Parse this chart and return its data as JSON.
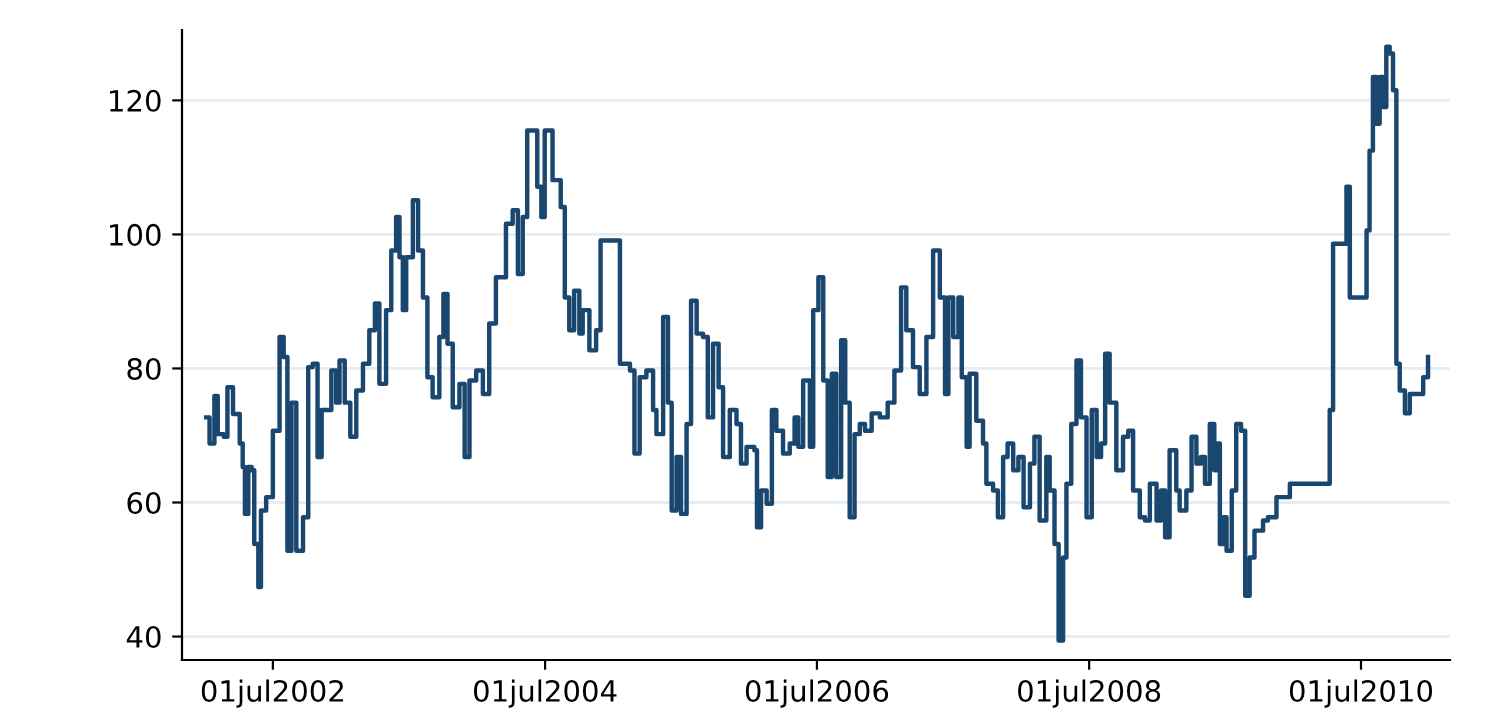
{
  "chart_data": {
    "type": "step",
    "color": "#1a476f",
    "grid": "y",
    "line_style": "solid",
    "xlim": [
      "2001-10-30",
      "2011-02-25"
    ],
    "ylim": [
      36.5,
      130.5
    ],
    "xticks": [
      {
        "value": "2002-07-01",
        "label": "01jul2002"
      },
      {
        "value": "2004-07-01",
        "label": "01jul2004"
      },
      {
        "value": "2006-07-01",
        "label": "01jul2006"
      },
      {
        "value": "2008-07-01",
        "label": "01jul2008"
      },
      {
        "value": "2010-07-01",
        "label": "01jul2010"
      }
    ],
    "yticks": [
      40,
      60,
      80,
      100,
      120
    ],
    "x": [
      "2002-01-03",
      "2002-01-12",
      "2002-01-25",
      "2002-02-03",
      "2002-02-19",
      "2002-03-01",
      "2002-03-16",
      "2002-04-03",
      "2002-04-11",
      "2002-04-17",
      "2002-04-26",
      "2002-05-05",
      "2002-05-12",
      "2002-05-23",
      "2002-05-30",
      "2002-06-13",
      "2002-07-01",
      "2002-07-19",
      "2002-07-30",
      "2002-08-09",
      "2002-08-20",
      "2002-09-02",
      "2002-09-20",
      "2002-10-04",
      "2002-10-16",
      "2002-10-29",
      "2002-11-09",
      "2002-11-21",
      "2002-12-05",
      "2002-12-18",
      "2002-12-27",
      "2003-01-10",
      "2003-01-25",
      "2003-02-10",
      "2003-02-28",
      "2003-03-17",
      "2003-04-01",
      "2003-04-13",
      "2003-05-01",
      "2003-05-15",
      "2003-05-28",
      "2003-06-06",
      "2003-06-15",
      "2003-06-24",
      "2003-07-12",
      "2003-07-26",
      "2003-08-08",
      "2003-08-20",
      "2003-09-03",
      "2003-09-21",
      "2003-10-02",
      "2003-10-13",
      "2003-10-27",
      "2003-11-14",
      "2003-11-28",
      "2003-12-11",
      "2003-12-29",
      "2004-01-16",
      "2004-02-02",
      "2004-02-20",
      "2004-03-18",
      "2004-04-05",
      "2004-04-19",
      "2004-05-02",
      "2004-05-14",
      "2004-05-29",
      "2004-06-10",
      "2004-06-21",
      "2004-06-30",
      "2004-07-21",
      "2004-08-12",
      "2004-08-23",
      "2004-09-04",
      "2004-09-17",
      "2004-10-01",
      "2004-10-10",
      "2004-10-28",
      "2004-11-15",
      "2004-11-27",
      "2005-01-18",
      "2005-02-14",
      "2005-02-26",
      "2005-03-12",
      "2005-03-30",
      "2005-04-17",
      "2005-04-26",
      "2005-05-14",
      "2005-05-27",
      "2005-06-06",
      "2005-06-19",
      "2005-07-01",
      "2005-07-16",
      "2005-07-28",
      "2005-08-12",
      "2005-08-29",
      "2005-09-11",
      "2005-09-25",
      "2005-10-10",
      "2005-10-22",
      "2005-11-09",
      "2005-11-27",
      "2005-12-09",
      "2005-12-24",
      "2006-01-14",
      "2006-01-21",
      "2006-02-01",
      "2006-02-16",
      "2006-03-02",
      "2006-03-14",
      "2006-04-01",
      "2006-04-19",
      "2006-05-02",
      "2006-05-12",
      "2006-05-25",
      "2006-06-12",
      "2006-06-21",
      "2006-07-05",
      "2006-07-18",
      "2006-07-30",
      "2006-08-10",
      "2006-08-22",
      "2006-09-04",
      "2006-09-15",
      "2006-09-27",
      "2006-10-10",
      "2006-10-24",
      "2006-11-07",
      "2006-11-25",
      "2006-12-17",
      "2007-01-07",
      "2007-01-25",
      "2007-02-12",
      "2007-02-26",
      "2007-03-16",
      "2007-04-03",
      "2007-04-21",
      "2007-05-09",
      "2007-05-27",
      "2007-06-10",
      "2007-06-19",
      "2007-07-02",
      "2007-07-16",
      "2007-07-25",
      "2007-08-07",
      "2007-08-15",
      "2007-09-02",
      "2007-09-20",
      "2007-09-29",
      "2007-10-17",
      "2007-10-30",
      "2007-11-13",
      "2007-11-25",
      "2007-12-10",
      "2007-12-24",
      "2008-01-07",
      "2008-01-24",
      "2008-02-05",
      "2008-02-19",
      "2008-03-08",
      "2008-03-17",
      "2008-03-30",
      "2008-04-10",
      "2008-04-22",
      "2008-05-01",
      "2008-05-14",
      "2008-05-28",
      "2008-06-09",
      "2008-06-24",
      "2008-07-08",
      "2008-07-21",
      "2008-08-02",
      "2008-08-13",
      "2008-08-25",
      "2008-09-12",
      "2008-09-30",
      "2008-10-14",
      "2008-10-27",
      "2008-11-14",
      "2008-11-28",
      "2008-12-11",
      "2008-12-29",
      "2009-01-10",
      "2009-01-21",
      "2009-02-02",
      "2009-02-20",
      "2009-03-01",
      "2009-03-19",
      "2009-04-02",
      "2009-04-15",
      "2009-04-27",
      "2009-05-08",
      "2009-05-21",
      "2009-06-02",
      "2009-06-10",
      "2009-06-17",
      "2009-06-26",
      "2009-07-05",
      "2009-07-19",
      "2009-07-31",
      "2009-08-13",
      "2009-08-24",
      "2009-09-05",
      "2009-09-18",
      "2009-10-11",
      "2009-10-24",
      "2009-11-16",
      "2009-12-04",
      "2009-12-22",
      "2010-01-09",
      "2010-04-08",
      "2010-04-17",
      "2010-05-14",
      "2010-05-23",
      "2010-06-01",
      "2010-07-07",
      "2010-07-16",
      "2010-07-24",
      "2010-08-02",
      "2010-08-11",
      "2010-08-20",
      "2010-08-29",
      "2010-09-07",
      "2010-09-16",
      "2010-09-25",
      "2010-10-04",
      "2010-10-13",
      "2010-10-27",
      "2010-11-09",
      "2010-11-27",
      "2010-12-15",
      "2010-12-28"
    ],
    "values": [
      72.7,
      68.8,
      75.9,
      70.2,
      69.8,
      77.2,
      73.2,
      68.8,
      65.3,
      58.3,
      65.3,
      64.8,
      53.8,
      47.4,
      58.8,
      60.8,
      70.7,
      84.7,
      81.7,
      52.8,
      74.9,
      52.8,
      57.8,
      80.2,
      80.7,
      66.8,
      73.8,
      73.8,
      79.7,
      74.9,
      81.2,
      74.9,
      69.8,
      76.7,
      80.7,
      85.7,
      89.7,
      77.7,
      88.7,
      97.6,
      102.6,
      96.6,
      88.7,
      96.6,
      105.1,
      97.6,
      90.6,
      78.7,
      75.7,
      84.7,
      91.1,
      83.7,
      74.2,
      77.7,
      66.8,
      78.2,
      79.7,
      76.2,
      86.7,
      93.6,
      101.6,
      103.6,
      94.1,
      102.6,
      115.5,
      115.5,
      107.1,
      102.6,
      115.5,
      108.1,
      104.1,
      90.6,
      85.7,
      91.6,
      85.2,
      88.7,
      82.7,
      85.7,
      99.1,
      80.7,
      79.7,
      67.3,
      78.7,
      79.7,
      73.8,
      70.2,
      87.7,
      74.9,
      58.8,
      66.8,
      58.3,
      71.7,
      90.1,
      85.2,
      84.7,
      72.7,
      83.7,
      77.2,
      66.8,
      73.8,
      71.7,
      65.8,
      68.3,
      67.8,
      56.3,
      61.8,
      59.8,
      73.8,
      70.7,
      67.3,
      68.8,
      72.7,
      68.3,
      78.2,
      68.3,
      88.7,
      93.6,
      78.2,
      63.8,
      79.2,
      63.8,
      84.2,
      74.9,
      57.8,
      70.2,
      71.7,
      70.7,
      73.3,
      72.7,
      74.9,
      79.7,
      92.1,
      85.7,
      80.2,
      76.2,
      84.7,
      97.6,
      90.6,
      76.2,
      90.6,
      84.7,
      90.6,
      78.7,
      68.3,
      79.2,
      72.2,
      68.8,
      62.8,
      61.8,
      57.8,
      66.8,
      68.8,
      64.8,
      66.8,
      59.3,
      65.8,
      69.8,
      57.3,
      66.8,
      61.8,
      53.8,
      39.4,
      51.8,
      62.8,
      71.7,
      81.2,
      72.7,
      57.8,
      73.8,
      66.8,
      68.8,
      82.2,
      74.9,
      64.8,
      69.8,
      70.7,
      61.8,
      57.8,
      57.3,
      62.8,
      57.3,
      61.8,
      54.8,
      67.8,
      61.8,
      58.8,
      61.8,
      69.8,
      65.8,
      66.8,
      62.8,
      71.7,
      64.8,
      68.8,
      53.8,
      57.8,
      52.8,
      61.8,
      71.7,
      70.7,
      46.1,
      51.8,
      55.8,
      57.3,
      57.8,
      60.8,
      60.8,
      62.8,
      62.8,
      73.8,
      98.6,
      98.6,
      107.1,
      90.6,
      90.6,
      100.6,
      112.5,
      123.5,
      116.5,
      123.5,
      119.0,
      128.0,
      127.0,
      121.5,
      80.7,
      76.7,
      73.3,
      76.2,
      76.2,
      78.7,
      81.7
    ]
  }
}
